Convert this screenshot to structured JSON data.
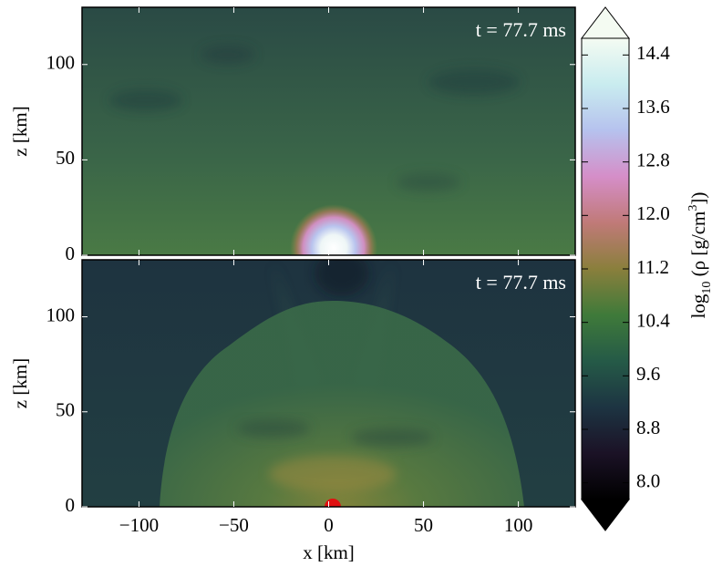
{
  "chart_data": [
    {
      "type": "image",
      "annotation": "t  =  77.7 ms",
      "xlim": [
        -130,
        130
      ],
      "ylim": [
        0,
        130
      ],
      "xticks": [
        -100,
        -50,
        0,
        50,
        100
      ],
      "yticks": [
        0,
        50,
        100
      ],
      "ylabel": "z [km]"
    },
    {
      "type": "image",
      "annotation": "t  =  77.7 ms",
      "xlim": [
        -130,
        130
      ],
      "ylim": [
        0,
        130
      ],
      "xticks": [
        {
          "value": -100,
          "label": "−100"
        },
        {
          "value": -50,
          "label": "−50"
        },
        0,
        50,
        100
      ],
      "yticks": [
        0,
        50,
        100
      ],
      "xlabel": "x [km]",
      "ylabel": "z [km]"
    },
    {
      "type": "colorbar",
      "clim": [
        7.75,
        14.65
      ],
      "extend": "both",
      "ticks": [
        {
          "value": 8,
          "label": "8.0"
        },
        8.8,
        9.6,
        10.4,
        11.2,
        {
          "value": 12,
          "label": "12.0"
        },
        12.8,
        13.6,
        14.4
      ],
      "colormap": [
        "#000000",
        "#1b1226",
        "#1d3442",
        "#255a47",
        "#3f7a3a",
        "#8a7f3c",
        "#c07a78",
        "#d58ec8",
        "#b6c2ee",
        "#c9ecef",
        "#f4fbf2"
      ],
      "label": {
        "base": "log",
        "sub": "10",
        "body": " (ρ [g/cm",
        "sup": "3",
        "end": "])"
      }
    }
  ]
}
